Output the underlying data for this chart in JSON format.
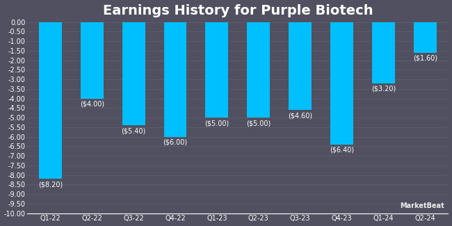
{
  "title": "Earnings History for Purple Biotech",
  "categories": [
    "Q1-22",
    "Q2-22",
    "Q3-22",
    "Q4-22",
    "Q1-23",
    "Q2-23",
    "Q3-23",
    "Q4-23",
    "Q1-24",
    "Q2-24"
  ],
  "values": [
    -8.2,
    -4.0,
    -5.4,
    -6.0,
    -5.0,
    -5.0,
    -4.6,
    -6.4,
    -3.2,
    -1.6
  ],
  "labels": [
    "($8.20)",
    "($4.00)",
    "($5.40)",
    "($6.00)",
    "($5.00)",
    "($5.00)",
    "($4.60)",
    "($6.40)",
    "($3.20)",
    "($1.60)"
  ],
  "bar_color": "#00bfff",
  "background_color": "#505060",
  "grid_color": "#5e5e70",
  "text_color": "#ffffff",
  "ylim": [
    -10.0,
    0.0
  ],
  "yticks": [
    0.0,
    -0.5,
    -1.0,
    -1.5,
    -2.0,
    -2.5,
    -3.0,
    -3.5,
    -4.0,
    -4.5,
    -5.0,
    -5.5,
    -6.0,
    -6.5,
    -7.0,
    -7.5,
    -8.0,
    -8.5,
    -9.0,
    -9.5,
    -10.0
  ],
  "ytick_labels": [
    "0.00",
    "-0.50",
    "-1.00",
    "-1.50",
    "-2.00",
    "-2.50",
    "-3.00",
    "-3.50",
    "-4.00",
    "-4.50",
    "-5.00",
    "-5.50",
    "-6.00",
    "-6.50",
    "-7.00",
    "-7.50",
    "-8.00",
    "-8.50",
    "-9.00",
    "-9.50",
    "-10.00"
  ],
  "title_fontsize": 14,
  "label_fontsize": 7,
  "tick_fontsize": 7,
  "bar_width": 0.55,
  "watermark": "MarketBeat"
}
